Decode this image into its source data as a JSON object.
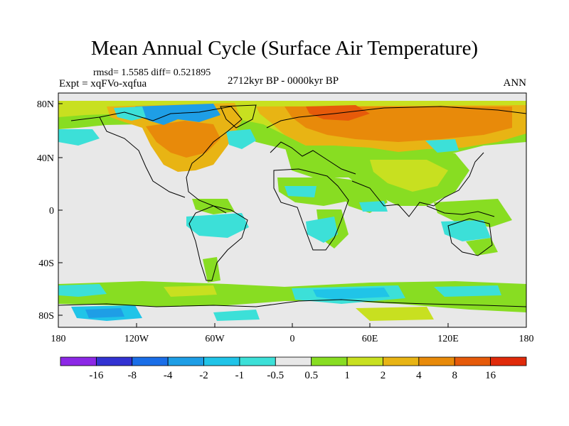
{
  "title": "Mean Annual Cycle (Surface Air Temperature)",
  "stats": "rmsd= 1.5585 diff= 0.521895",
  "experiment": "Expt = xqFVo-xqfua",
  "period": "2712kyr BP - 0000kyr BP",
  "season": "ANN",
  "lat_ticks": [
    "80N",
    "40N",
    "0",
    "40S",
    "80S"
  ],
  "lon_ticks": [
    "180",
    "120W",
    "60W",
    "0",
    "60E",
    "120E",
    "180"
  ],
  "colorbar": {
    "labels": [
      "-16",
      "-8",
      "-4",
      "-2",
      "-1",
      "-0.5",
      "0.5",
      "1",
      "2",
      "4",
      "8",
      "16"
    ],
    "colors": [
      "#8c28e6",
      "#3232d2",
      "#1a6ee8",
      "#1e9ee6",
      "#20c4e8",
      "#3ce0d8",
      "#e8e8e8",
      "#88dd22",
      "#c8e020",
      "#e8b414",
      "#e88a0a",
      "#e65a0a",
      "#e02a0a"
    ]
  },
  "palette": {
    "neutral": "#e8e8e8",
    "cyan": "#3ce0d8",
    "lightblue": "#20c4e8",
    "blue": "#1e9ee6",
    "green": "#88dd22",
    "yellow": "#c8e020",
    "orange": "#e8b414",
    "darkorange": "#e88a0a",
    "red": "#e65a0a"
  }
}
